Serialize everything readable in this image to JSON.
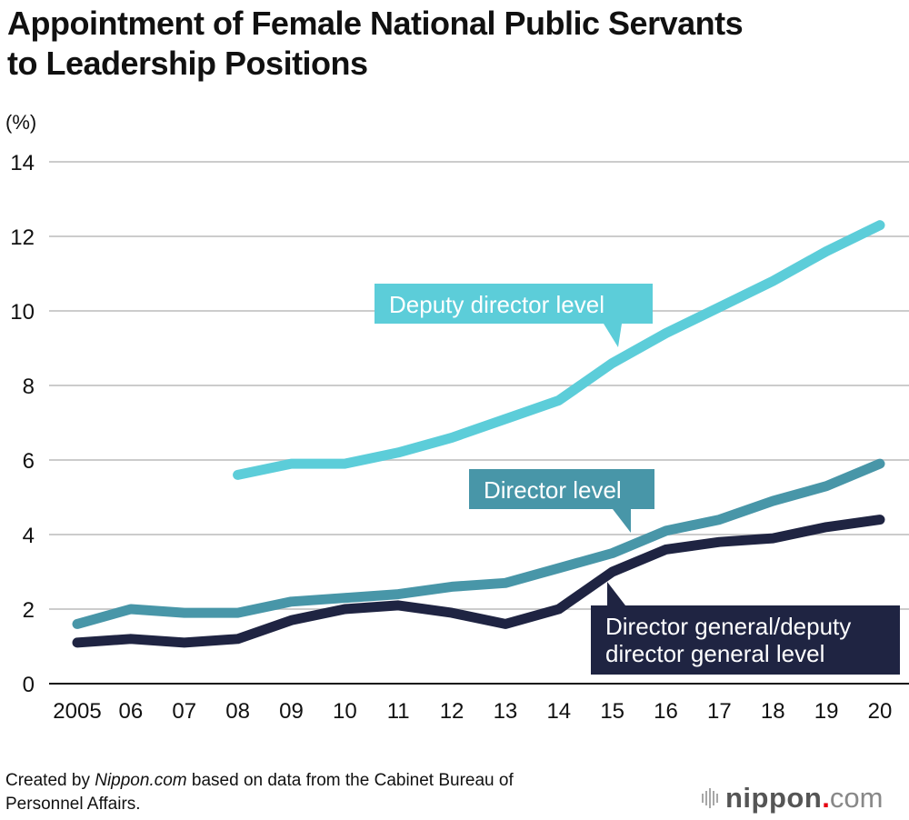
{
  "title_lines": [
    "Appointment of Female National Public Servants",
    "to Leadership Positions"
  ],
  "y_unit": "(%)",
  "source": {
    "prefix": "Created by ",
    "brand": "Nippon.com",
    "suffix": " based on data from the Cabinet Bureau of",
    "line2": "Personnel Affairs."
  },
  "logo": {
    "word": "nippon",
    "dot": ".",
    "tld": "com"
  },
  "colors": {
    "deputy_director": "#5ccdd9",
    "director": "#4896a8",
    "director_general": "#1f2442",
    "grid": "#cccccc",
    "axis": "#111111",
    "logo_dot": "#e60012"
  },
  "chart_data": {
    "type": "line",
    "title": "Appointment of Female National Public Servants to Leadership Positions",
    "xlabel": "",
    "ylabel": "(%)",
    "ylim": [
      0,
      14
    ],
    "yticks": [
      0,
      2,
      4,
      6,
      8,
      10,
      12,
      14
    ],
    "grid": true,
    "x": [
      "2005",
      "06",
      "07",
      "08",
      "09",
      "10",
      "11",
      "12",
      "13",
      "14",
      "15",
      "16",
      "17",
      "18",
      "19",
      "20"
    ],
    "series": [
      {
        "name": "Deputy director level",
        "label_lines": [
          "Deputy director level"
        ],
        "color_key": "deputy_director",
        "values": [
          null,
          null,
          null,
          5.6,
          5.9,
          5.9,
          6.2,
          6.6,
          7.1,
          7.6,
          8.6,
          9.4,
          10.1,
          10.8,
          11.6,
          12.3
        ]
      },
      {
        "name": "Director level",
        "label_lines": [
          "Director level"
        ],
        "color_key": "director",
        "values": [
          1.6,
          2.0,
          1.9,
          1.9,
          2.2,
          2.3,
          2.4,
          2.6,
          2.7,
          3.1,
          3.5,
          4.1,
          4.4,
          4.9,
          5.3,
          5.9
        ]
      },
      {
        "name": "Director general/deputy director general level",
        "label_lines": [
          "Director general/deputy",
          "director general level"
        ],
        "color_key": "director_general",
        "values": [
          1.1,
          1.2,
          1.1,
          1.2,
          1.7,
          2.0,
          2.1,
          1.9,
          1.6,
          2.0,
          3.0,
          3.6,
          3.8,
          3.9,
          4.2,
          4.4
        ]
      }
    ]
  }
}
